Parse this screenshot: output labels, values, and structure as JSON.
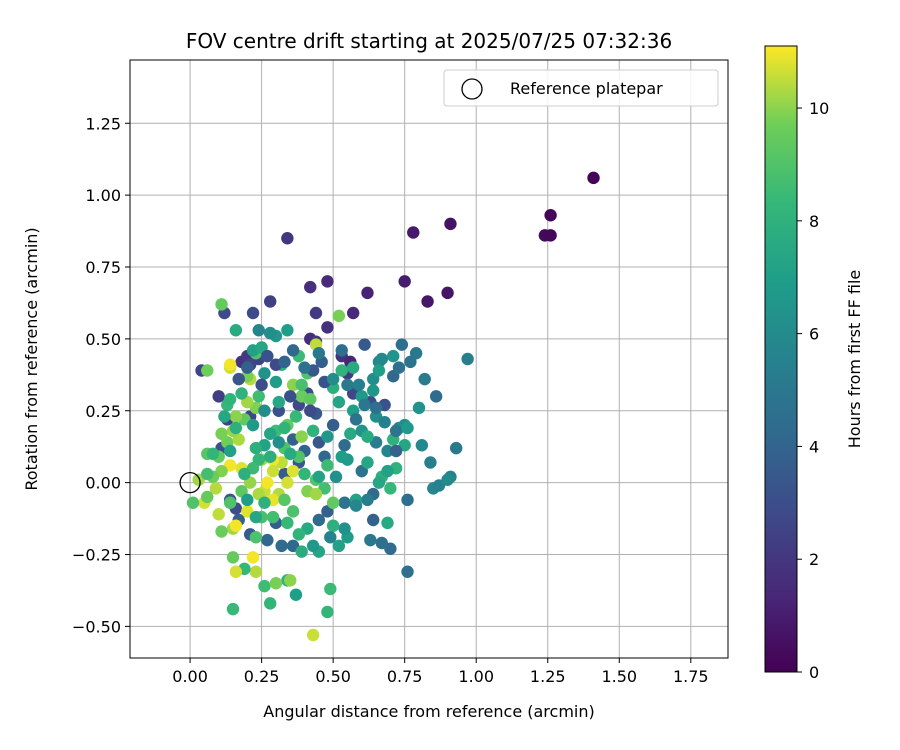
{
  "chart_data": {
    "type": "scatter",
    "title": "FOV centre drift starting at 2025/07/25 07:32:36",
    "xlabel": "Angular distance from reference (arcmin)",
    "ylabel": "Rotation from reference (arcmin)",
    "xlim": [
      -0.21,
      1.88
    ],
    "ylim": [
      -0.61,
      1.47
    ],
    "xticks": [
      0.0,
      0.25,
      0.5,
      0.75,
      1.0,
      1.25,
      1.5,
      1.75
    ],
    "xtick_labels": [
      "0.00",
      "0.25",
      "0.50",
      "0.75",
      "1.00",
      "1.25",
      "1.50",
      "1.75"
    ],
    "yticks": [
      -0.5,
      -0.25,
      0.0,
      0.25,
      0.5,
      0.75,
      1.0,
      1.25
    ],
    "ytick_labels": [
      "−0.50",
      "−0.25",
      "0.00",
      "0.25",
      "0.50",
      "0.75",
      "1.00",
      "1.25"
    ],
    "grid": true,
    "legend": {
      "position": "top-right",
      "entries": [
        "Reference platepar"
      ]
    },
    "reference_point": {
      "label": "Reference platepar",
      "x": 0.0,
      "y": 0.0
    },
    "colorbar": {
      "label": "Hours from first FF file",
      "range": [
        0,
        11.1
      ],
      "ticks": [
        0,
        2,
        4,
        6,
        8,
        10
      ],
      "tick_labels": [
        "0",
        "2",
        "4",
        "6",
        "8",
        "10"
      ],
      "colormap": "viridis"
    },
    "points": [
      [
        1.41,
        1.06,
        0.1
      ],
      [
        1.26,
        0.93,
        0.2
      ],
      [
        1.24,
        0.86,
        0.3
      ],
      [
        1.26,
        0.86,
        0.2
      ],
      [
        0.91,
        0.9,
        0.6
      ],
      [
        0.78,
        0.87,
        0.9
      ],
      [
        0.9,
        0.66,
        0.7
      ],
      [
        0.83,
        0.63,
        0.8
      ],
      [
        0.75,
        0.7,
        1.0
      ],
      [
        0.34,
        0.85,
        2.0
      ],
      [
        0.48,
        0.7,
        1.5
      ],
      [
        0.42,
        0.68,
        1.7
      ],
      [
        0.62,
        0.66,
        1.2
      ],
      [
        0.57,
        0.59,
        1.4
      ],
      [
        0.48,
        0.54,
        1.8
      ],
      [
        0.44,
        0.59,
        2.2
      ],
      [
        0.28,
        0.63,
        2.4
      ],
      [
        0.22,
        0.59,
        2.9
      ],
      [
        0.12,
        0.59,
        2.8
      ],
      [
        0.04,
        0.39,
        2.6
      ],
      [
        0.1,
        0.3,
        2.3
      ],
      [
        0.18,
        0.42,
        1.9
      ],
      [
        0.2,
        0.44,
        2.1
      ],
      [
        0.24,
        0.43,
        2.5
      ],
      [
        0.42,
        0.5,
        1.6
      ],
      [
        0.44,
        0.49,
        2.0
      ],
      [
        0.53,
        0.44,
        1.8
      ],
      [
        0.56,
        0.42,
        1.3
      ],
      [
        0.55,
        0.38,
        2.2
      ],
      [
        0.57,
        0.31,
        2.7
      ],
      [
        0.63,
        0.28,
        3.0
      ],
      [
        0.68,
        0.27,
        3.2
      ],
      [
        0.61,
        0.48,
        3.5
      ],
      [
        0.74,
        0.48,
        4.5
      ],
      [
        0.77,
        0.42,
        4.8
      ],
      [
        0.79,
        0.45,
        5.0
      ],
      [
        0.82,
        0.36,
        5.2
      ],
      [
        0.86,
        0.3,
        4.4
      ],
      [
        0.97,
        0.43,
        5.4
      ],
      [
        0.93,
        0.12,
        5.1
      ],
      [
        0.91,
        0.02,
        5.6
      ],
      [
        0.85,
        -0.02,
        5.8
      ],
      [
        0.76,
        -0.06,
        4.5
      ],
      [
        0.7,
        -0.23,
        4.4
      ],
      [
        0.67,
        -0.21,
        4.6
      ],
      [
        0.63,
        -0.2,
        5.0
      ],
      [
        0.76,
        -0.31,
        4.6
      ],
      [
        0.64,
        -0.13,
        3.9
      ],
      [
        0.54,
        -0.07,
        4.7
      ],
      [
        0.48,
        -0.1,
        3.8
      ],
      [
        0.45,
        -0.13,
        4.3
      ],
      [
        0.36,
        -0.22,
        4.2
      ],
      [
        0.32,
        -0.22,
        4.4
      ],
      [
        0.3,
        -0.14,
        3.7
      ],
      [
        0.27,
        -0.2,
        4.1
      ],
      [
        0.21,
        -0.18,
        3.5
      ],
      [
        0.17,
        -0.13,
        3.8
      ],
      [
        0.16,
        -0.09,
        3.0
      ],
      [
        0.14,
        -0.06,
        3.3
      ],
      [
        0.11,
        0.12,
        3.1
      ],
      [
        0.13,
        0.22,
        2.5
      ],
      [
        0.21,
        0.23,
        2.7
      ],
      [
        0.31,
        0.25,
        3.2
      ],
      [
        0.38,
        0.27,
        2.8
      ],
      [
        0.41,
        0.31,
        3.0
      ],
      [
        0.44,
        0.24,
        3.5
      ],
      [
        0.5,
        0.2,
        3.7
      ],
      [
        0.45,
        0.14,
        3.4
      ],
      [
        0.38,
        0.07,
        3.3
      ],
      [
        0.33,
        0.03,
        3.6
      ],
      [
        0.36,
        0.15,
        3.9
      ],
      [
        0.4,
        0.11,
        4.0
      ],
      [
        0.47,
        0.09,
        4.2
      ],
      [
        0.54,
        0.13,
        4.4
      ],
      [
        0.6,
        0.04,
        4.8
      ],
      [
        0.65,
        0.14,
        5.3
      ],
      [
        0.69,
        0.11,
        5.7
      ],
      [
        0.73,
        0.19,
        6.0
      ],
      [
        0.75,
        0.2,
        6.2
      ],
      [
        0.81,
        0.13,
        5.9
      ],
      [
        0.84,
        0.07,
        5.4
      ],
      [
        0.87,
        -0.01,
        5.5
      ],
      [
        0.9,
        0.01,
        6.0
      ],
      [
        0.8,
        0.26,
        6.4
      ],
      [
        0.71,
        0.44,
        6.5
      ],
      [
        0.66,
        0.42,
        5.8
      ],
      [
        0.64,
        0.36,
        6.2
      ],
      [
        0.6,
        0.3,
        6.7
      ],
      [
        0.57,
        0.25,
        7.0
      ],
      [
        0.52,
        0.28,
        7.3
      ],
      [
        0.5,
        0.33,
        7.8
      ],
      [
        0.53,
        0.39,
        8.1
      ],
      [
        0.57,
        0.4,
        7.6
      ],
      [
        0.48,
        0.16,
        6.6
      ],
      [
        0.55,
        0.08,
        6.8
      ],
      [
        0.62,
        0.07,
        7.4
      ],
      [
        0.67,
        0.02,
        7.9
      ],
      [
        0.7,
        -0.02,
        8.3
      ],
      [
        0.72,
        0.05,
        8.0
      ],
      [
        0.69,
        -0.14,
        7.5
      ],
      [
        0.58,
        -0.06,
        7.2
      ],
      [
        0.55,
        -0.19,
        6.9
      ],
      [
        0.52,
        -0.22,
        7.1
      ],
      [
        0.45,
        -0.24,
        7.3
      ],
      [
        0.39,
        -0.24,
        7.7
      ],
      [
        0.37,
        -0.39,
        7.0
      ],
      [
        0.34,
        -0.34,
        8.0
      ],
      [
        0.34,
        -0.14,
        8.4
      ],
      [
        0.29,
        -0.12,
        8.7
      ],
      [
        0.25,
        -0.12,
        8.8
      ],
      [
        0.23,
        -0.19,
        8.9
      ],
      [
        0.26,
        -0.36,
        8.6
      ],
      [
        0.28,
        -0.42,
        8.2
      ],
      [
        0.3,
        -0.35,
        9.8
      ],
      [
        0.35,
        -0.34,
        10.0
      ],
      [
        0.49,
        -0.37,
        8.5
      ],
      [
        0.48,
        -0.45,
        8.2
      ],
      [
        0.43,
        -0.53,
        10.6
      ],
      [
        0.23,
        -0.31,
        10.4
      ],
      [
        0.19,
        -0.3,
        8.3
      ],
      [
        0.16,
        -0.31,
        10.7
      ],
      [
        0.15,
        -0.44,
        8.4
      ],
      [
        0.15,
        -0.26,
        9.5
      ],
      [
        0.22,
        -0.26,
        11.0
      ],
      [
        0.15,
        -0.16,
        10.2
      ],
      [
        0.11,
        -0.17,
        9.6
      ],
      [
        0.1,
        -0.11,
        10.5
      ],
      [
        0.16,
        -0.15,
        11.0
      ],
      [
        0.2,
        -0.1,
        10.8
      ],
      [
        0.26,
        -0.03,
        10.6
      ],
      [
        0.31,
        -0.04,
        10.4
      ],
      [
        0.29,
        -0.06,
        10.9
      ],
      [
        0.34,
        0.0,
        10.7
      ],
      [
        0.32,
        0.07,
        10.5
      ],
      [
        0.29,
        0.08,
        11.0
      ],
      [
        0.25,
        0.08,
        10.2
      ],
      [
        0.18,
        0.05,
        10.8
      ],
      [
        0.14,
        0.06,
        11.0
      ],
      [
        0.11,
        0.04,
        9.9
      ],
      [
        0.08,
        0.02,
        9.6
      ],
      [
        0.06,
        0.1,
        9.2
      ],
      [
        0.1,
        0.09,
        9.4
      ],
      [
        0.13,
        0.14,
        9.7
      ],
      [
        0.17,
        0.15,
        10.3
      ],
      [
        0.11,
        0.17,
        9.8
      ],
      [
        0.15,
        0.18,
        10.1
      ],
      [
        0.19,
        0.22,
        9.4
      ],
      [
        0.16,
        0.23,
        10.0
      ],
      [
        0.23,
        0.26,
        9.9
      ],
      [
        0.2,
        0.28,
        10.2
      ],
      [
        0.21,
        0.36,
        10.4
      ],
      [
        0.2,
        0.37,
        9.8
      ],
      [
        0.14,
        0.4,
        10.6
      ],
      [
        0.14,
        0.41,
        11.0
      ],
      [
        0.06,
        0.39,
        9.7
      ],
      [
        0.11,
        0.62,
        9.5
      ],
      [
        0.52,
        0.58,
        9.8
      ],
      [
        0.44,
        0.48,
        10.5
      ],
      [
        0.36,
        0.34,
        10.0
      ],
      [
        0.39,
        0.3,
        9.6
      ],
      [
        0.42,
        0.29,
        9.3
      ],
      [
        0.34,
        0.2,
        9.5
      ],
      [
        0.3,
        0.18,
        8.6
      ],
      [
        0.33,
        0.12,
        8.9
      ],
      [
        0.38,
        0.09,
        9.0
      ],
      [
        0.44,
        0.01,
        9.1
      ],
      [
        0.47,
        -0.02,
        8.7
      ],
      [
        0.5,
        -0.07,
        9.4
      ],
      [
        0.41,
        -0.03,
        9.9
      ],
      [
        0.44,
        -0.04,
        10.2
      ],
      [
        0.36,
        0.04,
        10.8
      ],
      [
        0.39,
        0.16,
        10.0
      ],
      [
        0.29,
        0.04,
        10.6
      ],
      [
        0.27,
        0.0,
        11.0
      ],
      [
        0.24,
        -0.04,
        10.3
      ],
      [
        0.21,
        0.0,
        10.1
      ],
      [
        0.18,
        -0.03,
        9.3
      ],
      [
        0.14,
        -0.07,
        9.0
      ],
      [
        0.09,
        -0.02,
        10.4
      ],
      [
        0.05,
        -0.07,
        10.7
      ],
      [
        0.06,
        -0.05,
        9.5
      ],
      [
        0.03,
        0.01,
        10.2
      ],
      [
        0.01,
        -0.07,
        9.0
      ],
      [
        0.13,
        0.27,
        8.3
      ],
      [
        0.18,
        0.31,
        8.0
      ],
      [
        0.24,
        0.3,
        8.6
      ],
      [
        0.23,
        0.45,
        8.9
      ],
      [
        0.16,
        0.53,
        7.6
      ],
      [
        0.22,
        0.46,
        7.1
      ],
      [
        0.25,
        0.47,
        7.4
      ],
      [
        0.28,
        0.52,
        7.2
      ],
      [
        0.3,
        0.51,
        6.6
      ],
      [
        0.34,
        0.53,
        7.0
      ],
      [
        0.32,
        0.41,
        7.8
      ],
      [
        0.38,
        0.44,
        8.5
      ],
      [
        0.39,
        0.34,
        8.8
      ],
      [
        0.41,
        0.38,
        9.0
      ],
      [
        0.31,
        0.28,
        7.4
      ],
      [
        0.3,
        0.35,
        6.9
      ],
      [
        0.26,
        0.38,
        6.4
      ],
      [
        0.26,
        0.25,
        6.1
      ],
      [
        0.22,
        0.2,
        6.7
      ],
      [
        0.26,
        0.13,
        7.2
      ],
      [
        0.28,
        0.09,
        7.8
      ],
      [
        0.33,
        0.19,
        8.1
      ],
      [
        0.37,
        0.23,
        8.4
      ],
      [
        0.35,
        0.1,
        7.6
      ],
      [
        0.4,
        0.03,
        8.2
      ],
      [
        0.43,
        0.18,
        8.0
      ],
      [
        0.45,
        0.02,
        7.2
      ],
      [
        0.48,
        0.06,
        8.5
      ],
      [
        0.51,
        0.02,
        6.3
      ],
      [
        0.53,
        0.09,
        6.9
      ],
      [
        0.56,
        0.17,
        7.5
      ],
      [
        0.6,
        0.18,
        6.5
      ],
      [
        0.62,
        0.16,
        7.6
      ],
      [
        0.65,
        0.23,
        6.1
      ],
      [
        0.68,
        0.21,
        5.5
      ],
      [
        0.71,
        0.15,
        8.0
      ],
      [
        0.75,
        0.13,
        7.4
      ],
      [
        0.66,
        0.39,
        7.0
      ],
      [
        0.64,
        0.32,
        6.6
      ],
      [
        0.67,
        0.43,
        5.9
      ],
      [
        0.71,
        0.37,
        4.2
      ],
      [
        0.73,
        0.4,
        4.6
      ],
      [
        0.58,
        0.22,
        4.8
      ],
      [
        0.55,
        0.34,
        5.1
      ],
      [
        0.53,
        0.46,
        4.5
      ],
      [
        0.46,
        0.42,
        3.8
      ],
      [
        0.43,
        0.39,
        3.4
      ],
      [
        0.47,
        0.35,
        3.2
      ],
      [
        0.42,
        0.25,
        2.9
      ],
      [
        0.35,
        0.3,
        3.1
      ],
      [
        0.3,
        0.41,
        2.8
      ],
      [
        0.27,
        0.44,
        3.2
      ],
      [
        0.25,
        0.34,
        3.0
      ],
      [
        0.21,
        0.41,
        2.6
      ],
      [
        0.17,
        0.36,
        3.3
      ],
      [
        0.2,
        0.4,
        3.8
      ],
      [
        0.24,
        0.53,
        5.7
      ],
      [
        0.28,
        0.52,
        6.1
      ],
      [
        0.33,
        0.42,
        4.0
      ],
      [
        0.36,
        0.46,
        4.2
      ],
      [
        0.4,
        0.4,
        4.7
      ],
      [
        0.45,
        0.45,
        5.0
      ],
      [
        0.5,
        0.36,
        6.1
      ],
      [
        0.59,
        0.34,
        5.4
      ],
      [
        0.61,
        0.27,
        5.0
      ],
      [
        0.65,
        0.26,
        4.6
      ],
      [
        0.72,
        0.18,
        4.9
      ],
      [
        0.76,
        0.19,
        6.8
      ],
      [
        0.72,
        0.11,
        3.9
      ],
      [
        0.69,
        0.04,
        7.1
      ],
      [
        0.66,
        0.0,
        7.4
      ],
      [
        0.64,
        -0.04,
        4.3
      ],
      [
        0.62,
        -0.06,
        5.2
      ],
      [
        0.58,
        -0.08,
        5.8
      ],
      [
        0.54,
        -0.16,
        6.3
      ],
      [
        0.5,
        -0.15,
        7.9
      ],
      [
        0.49,
        -0.19,
        5.6
      ],
      [
        0.43,
        -0.22,
        6.7
      ],
      [
        0.41,
        -0.16,
        7.5
      ],
      [
        0.38,
        -0.18,
        8.1
      ],
      [
        0.36,
        -0.1,
        8.9
      ],
      [
        0.33,
        -0.06,
        9.2
      ],
      [
        0.31,
        0.14,
        6.3
      ],
      [
        0.28,
        0.17,
        7.3
      ],
      [
        0.23,
        0.12,
        7.8
      ],
      [
        0.24,
        0.08,
        8.2
      ],
      [
        0.22,
        0.05,
        8.5
      ],
      [
        0.19,
        0.03,
        7.9
      ],
      [
        0.2,
        -0.06,
        6.9
      ],
      [
        0.23,
        -0.12,
        7.4
      ],
      [
        0.26,
        -0.07,
        7.9
      ],
      [
        0.14,
        0.11,
        7.1
      ],
      [
        0.12,
        0.23,
        7.4
      ],
      [
        0.16,
        0.19,
        7.9
      ],
      [
        0.14,
        0.29,
        8.1
      ],
      [
        0.08,
        0.1,
        8.2
      ],
      [
        0.06,
        0.03,
        8.7
      ]
    ]
  }
}
